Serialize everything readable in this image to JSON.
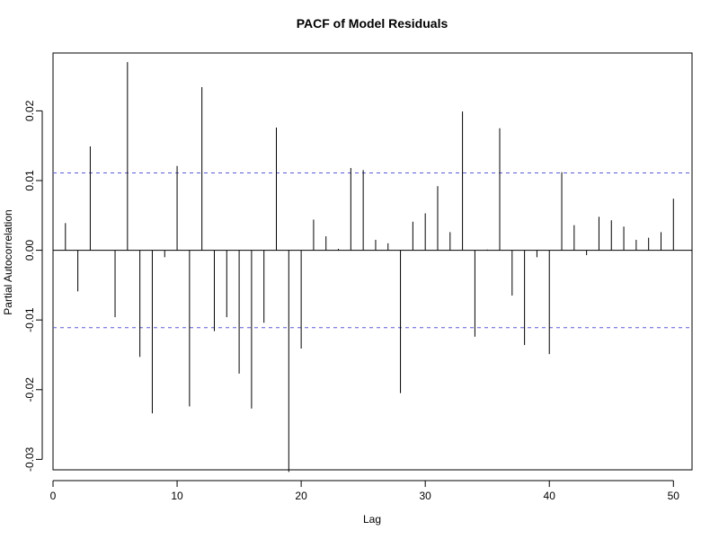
{
  "chart_data": {
    "type": "bar",
    "title": "PACF of Model Residuals",
    "xlabel": "Lag",
    "ylabel": "Partial Autocorrelation",
    "xlim": [
      0,
      51.5
    ],
    "ylim": [
      -0.0315,
      0.0283
    ],
    "x_ticks": [
      0,
      10,
      20,
      30,
      40,
      50
    ],
    "y_ticks": [
      -0.03,
      -0.02,
      -0.01,
      0.0,
      0.01,
      0.02
    ],
    "y_tick_labels": [
      "-0.03",
      "-0.02",
      "-0.01",
      "0.00",
      "0.01",
      "0.02"
    ],
    "confidence_bound": 0.0111,
    "bound_color": "#5b5bd6",
    "line_color": "#000000",
    "grid": false,
    "lags": [
      1,
      2,
      3,
      4,
      5,
      6,
      7,
      8,
      9,
      10,
      11,
      12,
      13,
      14,
      15,
      16,
      17,
      18,
      19,
      20,
      21,
      22,
      23,
      24,
      25,
      26,
      27,
      28,
      29,
      30,
      31,
      32,
      33,
      34,
      35,
      36,
      37,
      38,
      39,
      40,
      41,
      42,
      43,
      44,
      45,
      46,
      47,
      48,
      49,
      50
    ],
    "values": [
      0.0039,
      -0.0059,
      0.0149,
      0.0,
      -0.0096,
      0.027,
      -0.0153,
      -0.0234,
      -0.001,
      0.0121,
      -0.0224,
      0.0234,
      -0.0116,
      -0.0096,
      -0.0177,
      -0.0227,
      -0.0104,
      0.0176,
      -0.0318,
      -0.0141,
      0.0044,
      0.002,
      0.0002,
      0.0118,
      0.0115,
      0.0015,
      0.001,
      -0.0205,
      0.0041,
      0.0053,
      0.0092,
      0.0026,
      0.0199,
      -0.0124,
      0.0001,
      0.0175,
      -0.0065,
      -0.0136,
      -0.001,
      -0.0149,
      0.0112,
      0.0036,
      -0.0007,
      0.0048,
      0.0043,
      0.0034,
      0.0015,
      0.0018,
      0.0026,
      0.0074
    ]
  }
}
